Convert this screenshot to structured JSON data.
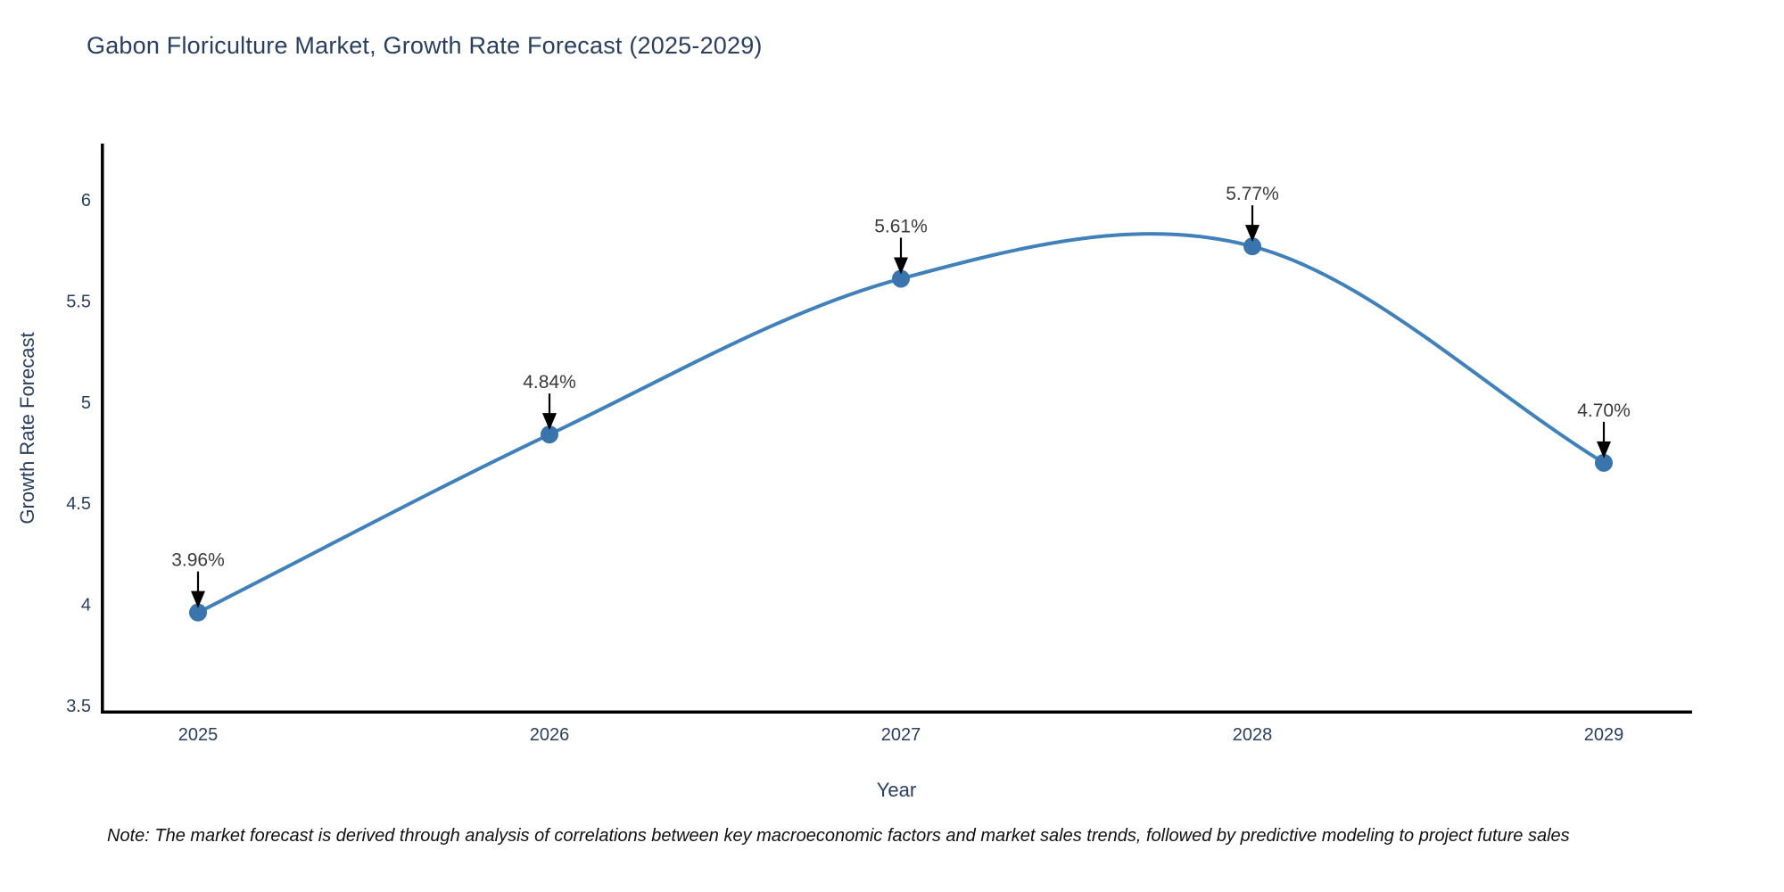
{
  "header": {
    "title": "Gabon Floriculture Market, Growth Rate Forecast (2025-2029)"
  },
  "footer": {
    "note": "Note: The market forecast is derived through analysis of correlations between key macroeconomic factors and market sales trends, followed by predictive modeling to project future sales"
  },
  "chart_data": {
    "type": "line",
    "line_shape": "spline",
    "title": "Gabon Floriculture Market, Growth Rate Forecast (2025-2029)",
    "xlabel": "Year",
    "ylabel": "Growth Rate Forecast",
    "x": [
      2025,
      2026,
      2027,
      2028,
      2029
    ],
    "values": [
      3.96,
      4.84,
      5.61,
      5.77,
      4.7
    ],
    "point_labels": [
      "3.96%",
      "4.84%",
      "5.61%",
      "5.77%",
      "4.70%"
    ],
    "x_tick_labels": [
      "2025",
      "2026",
      "2027",
      "2028",
      "2029"
    ],
    "y_ticks": [
      3.5,
      4,
      4.5,
      5,
      5.5,
      6
    ],
    "y_tick_labels": [
      "3.5",
      "4",
      "4.5",
      "5",
      "5.5",
      "6"
    ],
    "ylim": [
      3.46,
      6.28
    ],
    "grid": false,
    "legend": "none",
    "markers": true,
    "annotations": "value labels with black down-arrows above each point",
    "colors": {
      "line": "#4080bb",
      "marker": "#3a74ad",
      "axis": "#000000",
      "tick_text": "#2a3f5f",
      "annotation_text": "#3a3a3a",
      "arrow": "#000000",
      "background": "#ffffff"
    }
  }
}
